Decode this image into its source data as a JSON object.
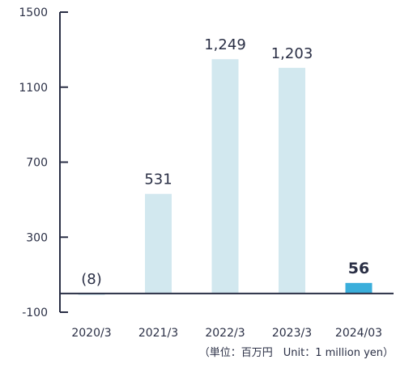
{
  "chart_data": {
    "type": "bar",
    "categories": [
      "2020/3",
      "2021/3",
      "2022/3",
      "2023/3",
      "2024/03"
    ],
    "values": [
      -8,
      531,
      1249,
      1203,
      56
    ],
    "data_labels": [
      "(8)",
      "531",
      "1,249",
      "1,203",
      "56"
    ],
    "highlight_index": 4,
    "ylim": [
      -100,
      1500
    ],
    "yticks": [
      -100,
      300,
      700,
      1100,
      1500
    ],
    "ytick_labels": [
      "-100",
      "300",
      "700",
      "1100",
      "1500"
    ],
    "unit_note": "（単位：百万円　Unit：1 million yen）",
    "colors": {
      "bar": "#d2e8ef",
      "highlight": "#3aaedb",
      "axis": "#2a2f45",
      "text": "#2a2f45"
    },
    "grid": false,
    "legend": "none"
  }
}
